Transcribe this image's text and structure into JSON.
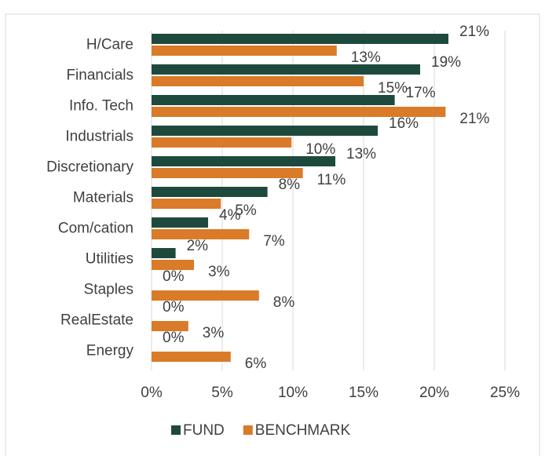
{
  "chart_data": {
    "type": "hbar",
    "categories": [
      "H/Care",
      "Financials",
      "Info. Tech",
      "Industrials",
      "Discretionary",
      "Materials",
      "Com/cation",
      "Utilities",
      "Staples",
      "RealEstate",
      "Energy"
    ],
    "series": [
      {
        "name": "FUND",
        "color": "#1e4a3e",
        "values": [
          21.0,
          19.0,
          17.2,
          16.0,
          13.0,
          8.2,
          4.0,
          1.7,
          0,
          0,
          0
        ],
        "value_labels": [
          "21%",
          "19%",
          "17%",
          "16%",
          "13%",
          "8%",
          "4%",
          "2%",
          "0%",
          "0%",
          "0%"
        ]
      },
      {
        "name": "BENCHMARK",
        "color": "#d97b28",
        "values": [
          13.1,
          15.0,
          20.8,
          9.9,
          10.7,
          4.9,
          6.9,
          3.0,
          7.6,
          2.6,
          5.6
        ],
        "value_labels": [
          "13%",
          "15%",
          "21%",
          "10%",
          "11%",
          "5%",
          "7%",
          "3%",
          "8%",
          "3%",
          "6%"
        ]
      }
    ],
    "xlim": [
      0,
      25
    ],
    "xticks": [
      {
        "value": 0,
        "label": "0%"
      },
      {
        "value": 5,
        "label": "5%"
      },
      {
        "value": 10,
        "label": "10%"
      },
      {
        "value": 15,
        "label": "15%"
      },
      {
        "value": 20,
        "label": "20%"
      },
      {
        "value": 25,
        "label": "25%"
      }
    ],
    "grid": true,
    "legend": "bottom"
  }
}
